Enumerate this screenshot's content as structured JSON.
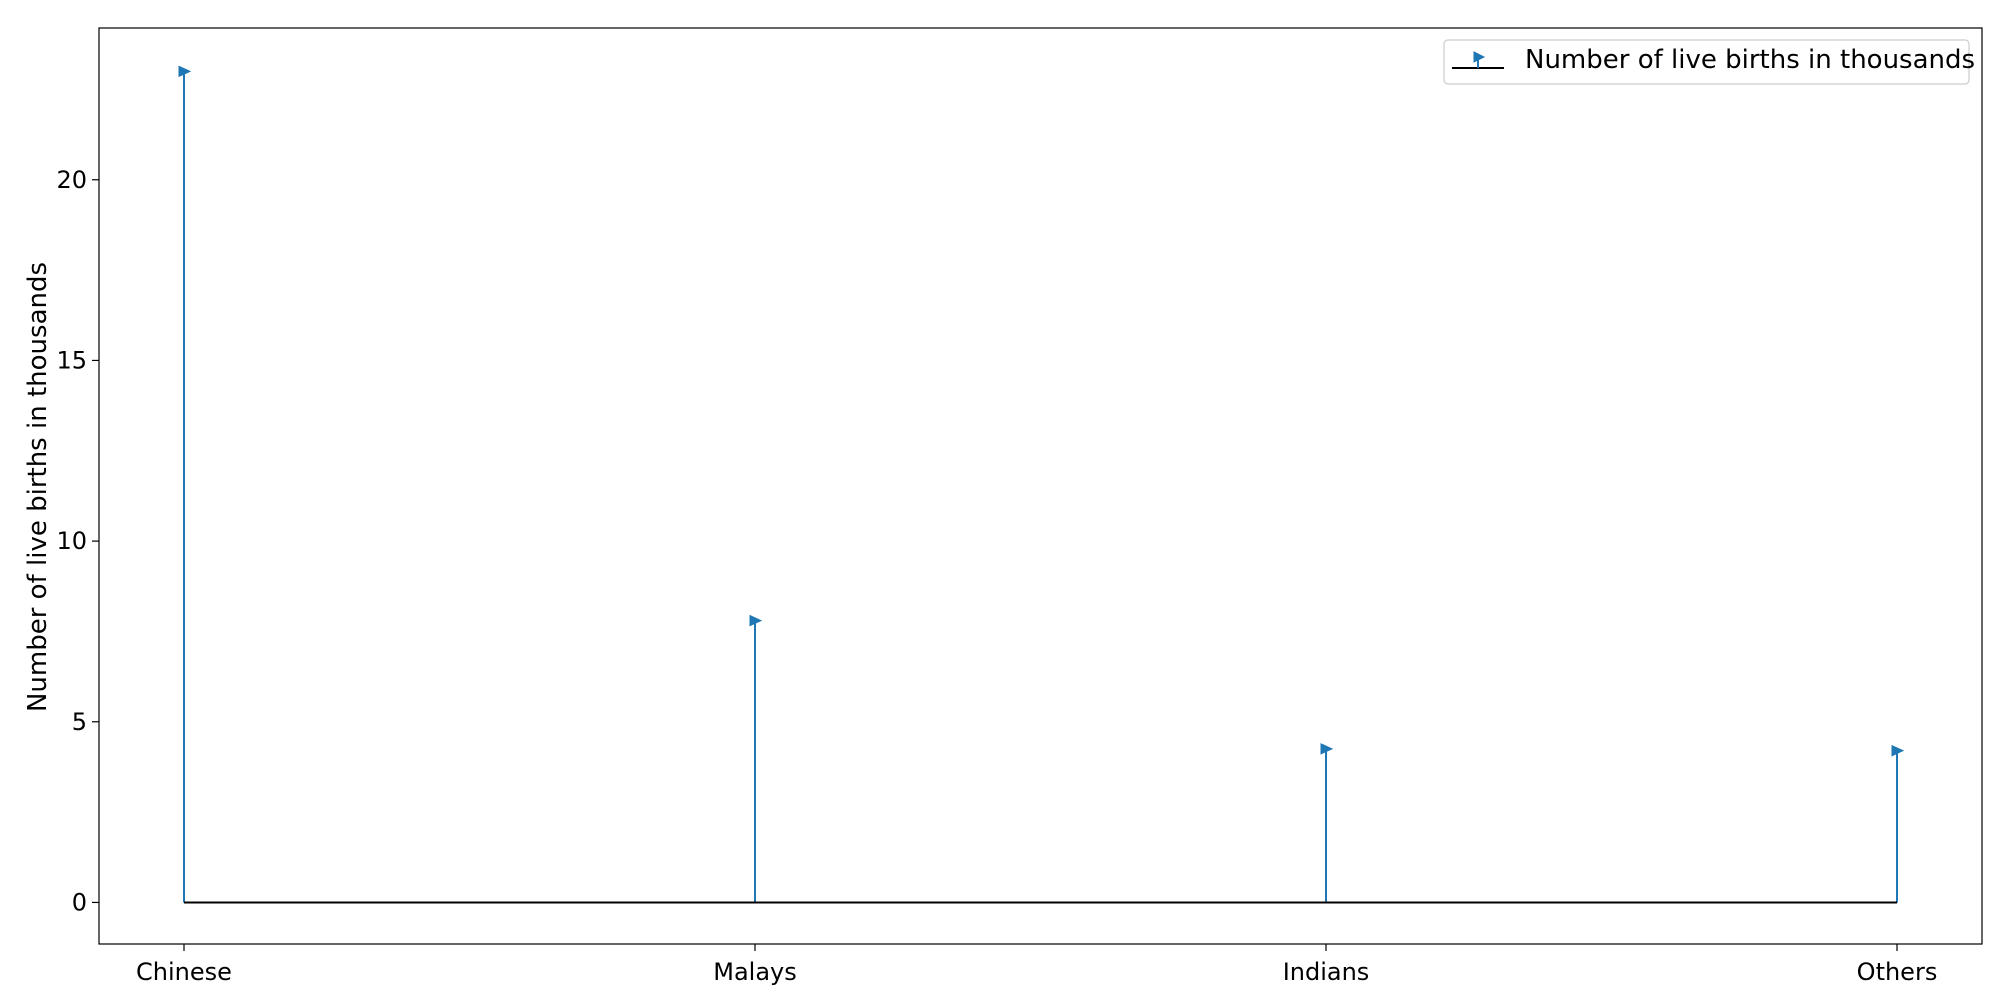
{
  "chart_data": {
    "type": "stem",
    "categories": [
      "Chinese",
      "Malays",
      "Indians",
      "Others"
    ],
    "series": [
      {
        "name": "Number of live births in thousands",
        "values": [
          23.0,
          7.8,
          4.25,
          4.2
        ],
        "color": "#1f77b4",
        "marker": "triangle-right"
      }
    ],
    "title": "",
    "xlabel": "",
    "ylabel": "Number of live births in thousands",
    "ylim": [
      -1.15,
      24.2
    ],
    "yticks": [
      0,
      5,
      10,
      15,
      20
    ],
    "grid": false,
    "baseline": 0,
    "baseline_color": "#000000",
    "legend_position": "top-right"
  }
}
